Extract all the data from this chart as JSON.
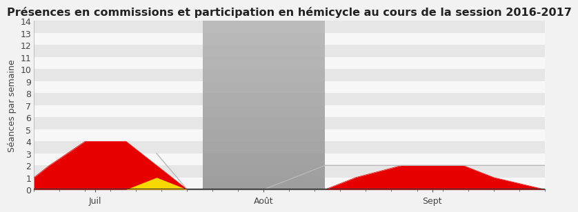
{
  "title": "Présences en commissions et participation en hémicycle au cours de la session 2016-2017",
  "ylabel": "Séances par semaine",
  "xlim": [
    0,
    100
  ],
  "ylim": [
    0,
    14
  ],
  "yticks": [
    0,
    1,
    2,
    3,
    4,
    5,
    6,
    7,
    8,
    9,
    10,
    11,
    12,
    13,
    14
  ],
  "xtick_positions": [
    12,
    45,
    78
  ],
  "xtick_labels": [
    "Juil",
    "Août",
    "Sept"
  ],
  "background_color": "#f2f2f2",
  "stripe_light": "#f7f7f7",
  "stripe_dark": "#e6e6e6",
  "recess_color_top": "#b0b0b0",
  "recess_color_bottom": "#c8c8c8",
  "recess_x_start": 33,
  "recess_x_end": 57,
  "title_fontsize": 11.5,
  "label_fontsize": 9,
  "tick_fontsize": 9,
  "red_x": [
    0,
    3,
    10,
    18,
    24,
    30,
    33
  ],
  "red_y": [
    1,
    2,
    4,
    4,
    2,
    0,
    0
  ],
  "yellow_x": [
    18,
    24,
    30,
    33
  ],
  "yellow_y": [
    0,
    1,
    0,
    0
  ],
  "gray_line_x": [
    24,
    30,
    37,
    45,
    57,
    100
  ],
  "gray_line_y": [
    3,
    0,
    0,
    0,
    2,
    2
  ],
  "red2_x": [
    57,
    63,
    72,
    84,
    90,
    100
  ],
  "red2_y": [
    0,
    1,
    2,
    2,
    1,
    0
  ],
  "red_color": "#e60000",
  "yellow_color": "#f5d800",
  "gray_line_color": "#b8b8b8",
  "axis_color": "#555555",
  "border_color": "#888888"
}
